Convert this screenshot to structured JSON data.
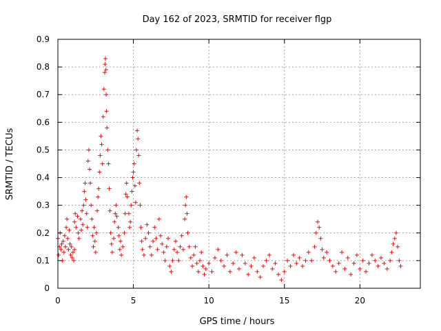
{
  "chart_data": {
    "type": "scatter",
    "title": "Day 162 of 2023, SRMTID for receiver flgp",
    "xlabel": "GPS time / hours",
    "ylabel": "SRMTID / TECUs",
    "xlim": [
      0,
      24
    ],
    "ylim": [
      0,
      0.9
    ],
    "grid": true,
    "marker": "+",
    "series_color": "#ff0000",
    "x_ticks": [
      {
        "value": 0,
        "label": "0"
      },
      {
        "value": 5,
        "label": "5"
      },
      {
        "value": 10,
        "label": "10"
      },
      {
        "value": 15,
        "label": "15"
      },
      {
        "value": 20,
        "label": "20"
      }
    ],
    "y_ticks": [
      {
        "value": 0,
        "label": "0"
      },
      {
        "value": 0.1,
        "label": "0.1"
      },
      {
        "value": 0.2,
        "label": "0.2"
      },
      {
        "value": 0.3,
        "label": "0.3"
      },
      {
        "value": 0.4,
        "label": "0.4"
      },
      {
        "value": 0.5,
        "label": "0.5"
      },
      {
        "value": 0.6,
        "label": "0.6"
      },
      {
        "value": 0.7,
        "label": "0.7"
      },
      {
        "value": 0.8,
        "label": "0.8"
      },
      {
        "value": 0.9,
        "label": "0.9"
      }
    ],
    "series": [
      {
        "name": "SRMTID",
        "points": [
          [
            0.0,
            0.18
          ],
          [
            0.05,
            0.12
          ],
          [
            0.1,
            0.15
          ],
          [
            0.15,
            0.2
          ],
          [
            0.2,
            0.14
          ],
          [
            0.25,
            0.16
          ],
          [
            0.3,
            0.1
          ],
          [
            0.35,
            0.17
          ],
          [
            0.4,
            0.13
          ],
          [
            0.45,
            0.19
          ],
          [
            0.5,
            0.15
          ],
          [
            0.55,
            0.22
          ],
          [
            0.6,
            0.25
          ],
          [
            0.65,
            0.18
          ],
          [
            0.7,
            0.14
          ],
          [
            0.75,
            0.21
          ],
          [
            0.8,
            0.16
          ],
          [
            0.85,
            0.12
          ],
          [
            0.9,
            0.15
          ],
          [
            0.95,
            0.11
          ],
          [
            1.0,
            0.13
          ],
          [
            1.05,
            0.1
          ],
          [
            1.1,
            0.14
          ],
          [
            1.1,
            0.24
          ],
          [
            1.15,
            0.27
          ],
          [
            1.2,
            0.22
          ],
          [
            1.3,
            0.26
          ],
          [
            1.35,
            0.2
          ],
          [
            1.4,
            0.18
          ],
          [
            1.5,
            0.25
          ],
          [
            1.55,
            0.21
          ],
          [
            1.6,
            0.28
          ],
          [
            1.65,
            0.23
          ],
          [
            1.7,
            0.3
          ],
          [
            1.75,
            0.35
          ],
          [
            1.8,
            0.38
          ],
          [
            1.85,
            0.32
          ],
          [
            1.9,
            0.27
          ],
          [
            1.95,
            0.22
          ],
          [
            2.0,
            0.46
          ],
          [
            2.05,
            0.5
          ],
          [
            2.1,
            0.43
          ],
          [
            2.15,
            0.38
          ],
          [
            2.2,
            0.3
          ],
          [
            2.25,
            0.25
          ],
          [
            2.3,
            0.19
          ],
          [
            2.35,
            0.15
          ],
          [
            2.4,
            0.22
          ],
          [
            2.45,
            0.17
          ],
          [
            2.5,
            0.13
          ],
          [
            2.55,
            0.2
          ],
          [
            2.6,
            0.28
          ],
          [
            2.65,
            0.33
          ],
          [
            2.7,
            0.36
          ],
          [
            2.75,
            0.42
          ],
          [
            2.8,
            0.48
          ],
          [
            2.85,
            0.55
          ],
          [
            2.9,
            0.52
          ],
          [
            2.95,
            0.45
          ],
          [
            3.0,
            0.62
          ],
          [
            3.05,
            0.72
          ],
          [
            3.1,
            0.78
          ],
          [
            3.12,
            0.81
          ],
          [
            3.15,
            0.83
          ],
          [
            3.18,
            0.79
          ],
          [
            3.2,
            0.7
          ],
          [
            3.22,
            0.64
          ],
          [
            3.25,
            0.58
          ],
          [
            3.3,
            0.5
          ],
          [
            3.35,
            0.45
          ],
          [
            3.4,
            0.36
          ],
          [
            3.45,
            0.28
          ],
          [
            3.5,
            0.2
          ],
          [
            3.55,
            0.16
          ],
          [
            3.6,
            0.13
          ],
          [
            3.7,
            0.18
          ],
          [
            3.75,
            0.24
          ],
          [
            3.8,
            0.27
          ],
          [
            3.85,
            0.3
          ],
          [
            3.9,
            0.26
          ],
          [
            4.0,
            0.22
          ],
          [
            4.05,
            0.19
          ],
          [
            4.1,
            0.14
          ],
          [
            4.15,
            0.17
          ],
          [
            4.2,
            0.12
          ],
          [
            4.3,
            0.15
          ],
          [
            4.4,
            0.2
          ],
          [
            4.45,
            0.27
          ],
          [
            4.5,
            0.34
          ],
          [
            4.55,
            0.38
          ],
          [
            4.6,
            0.33
          ],
          [
            4.7,
            0.27
          ],
          [
            4.75,
            0.22
          ],
          [
            4.8,
            0.24
          ],
          [
            4.85,
            0.3
          ],
          [
            4.9,
            0.35
          ],
          [
            4.95,
            0.4
          ],
          [
            5.0,
            0.42
          ],
          [
            5.05,
            0.45
          ],
          [
            5.1,
            0.37
          ],
          [
            5.15,
            0.31
          ],
          [
            5.2,
            0.5
          ],
          [
            5.25,
            0.57
          ],
          [
            5.3,
            0.54
          ],
          [
            5.35,
            0.48
          ],
          [
            5.4,
            0.38
          ],
          [
            5.45,
            0.3
          ],
          [
            5.5,
            0.22
          ],
          [
            5.55,
            0.17
          ],
          [
            5.6,
            0.14
          ],
          [
            5.7,
            0.12
          ],
          [
            5.8,
            0.18
          ],
          [
            5.9,
            0.23
          ],
          [
            6.0,
            0.2
          ],
          [
            6.1,
            0.15
          ],
          [
            6.2,
            0.12
          ],
          [
            6.3,
            0.17
          ],
          [
            6.4,
            0.22
          ],
          [
            6.5,
            0.18
          ],
          [
            6.6,
            0.14
          ],
          [
            6.7,
            0.25
          ],
          [
            6.8,
            0.19
          ],
          [
            6.9,
            0.16
          ],
          [
            7.0,
            0.13
          ],
          [
            7.1,
            0.1
          ],
          [
            7.2,
            0.15
          ],
          [
            7.3,
            0.18
          ],
          [
            7.4,
            0.08
          ],
          [
            7.5,
            0.06
          ],
          [
            7.6,
            0.1
          ],
          [
            7.7,
            0.14
          ],
          [
            7.8,
            0.17
          ],
          [
            7.9,
            0.13
          ],
          [
            8.0,
            0.1
          ],
          [
            8.1,
            0.15
          ],
          [
            8.2,
            0.19
          ],
          [
            8.3,
            0.14
          ],
          [
            8.4,
            0.25
          ],
          [
            8.45,
            0.3
          ],
          [
            8.5,
            0.33
          ],
          [
            8.55,
            0.27
          ],
          [
            8.6,
            0.2
          ],
          [
            8.7,
            0.15
          ],
          [
            8.8,
            0.11
          ],
          [
            8.9,
            0.08
          ],
          [
            9.0,
            0.12
          ],
          [
            9.1,
            0.15
          ],
          [
            9.2,
            0.09
          ],
          [
            9.3,
            0.06
          ],
          [
            9.4,
            0.1
          ],
          [
            9.5,
            0.13
          ],
          [
            9.6,
            0.08
          ],
          [
            9.7,
            0.05
          ],
          [
            9.8,
            0.07
          ],
          [
            10.0,
            0.09
          ],
          [
            10.2,
            0.06
          ],
          [
            10.4,
            0.11
          ],
          [
            10.6,
            0.14
          ],
          [
            10.8,
            0.1
          ],
          [
            11.0,
            0.08
          ],
          [
            11.2,
            0.12
          ],
          [
            11.4,
            0.06
          ],
          [
            11.6,
            0.09
          ],
          [
            11.8,
            0.13
          ],
          [
            12.0,
            0.07
          ],
          [
            12.2,
            0.12
          ],
          [
            12.4,
            0.09
          ],
          [
            12.6,
            0.05
          ],
          [
            12.8,
            0.08
          ],
          [
            13.0,
            0.11
          ],
          [
            13.2,
            0.06
          ],
          [
            13.4,
            0.04
          ],
          [
            13.6,
            0.08
          ],
          [
            13.8,
            0.1
          ],
          [
            14.0,
            0.12
          ],
          [
            14.2,
            0.07
          ],
          [
            14.4,
            0.09
          ],
          [
            14.6,
            0.05
          ],
          [
            14.8,
            0.03
          ],
          [
            15.0,
            0.06
          ],
          [
            15.2,
            0.1
          ],
          [
            15.4,
            0.08
          ],
          [
            15.6,
            0.12
          ],
          [
            15.8,
            0.09
          ],
          [
            16.0,
            0.11
          ],
          [
            16.2,
            0.08
          ],
          [
            16.4,
            0.1
          ],
          [
            16.6,
            0.13
          ],
          [
            16.8,
            0.1
          ],
          [
            17.0,
            0.15
          ],
          [
            17.1,
            0.2
          ],
          [
            17.2,
            0.24
          ],
          [
            17.3,
            0.22
          ],
          [
            17.4,
            0.18
          ],
          [
            17.5,
            0.14
          ],
          [
            17.6,
            0.11
          ],
          [
            17.8,
            0.13
          ],
          [
            18.0,
            0.1
          ],
          [
            18.2,
            0.08
          ],
          [
            18.4,
            0.06
          ],
          [
            18.6,
            0.09
          ],
          [
            18.8,
            0.13
          ],
          [
            19.0,
            0.07
          ],
          [
            19.2,
            0.11
          ],
          [
            19.4,
            0.05
          ],
          [
            19.6,
            0.09
          ],
          [
            19.8,
            0.12
          ],
          [
            20.0,
            0.07
          ],
          [
            20.2,
            0.1
          ],
          [
            20.4,
            0.06
          ],
          [
            20.6,
            0.09
          ],
          [
            20.8,
            0.12
          ],
          [
            21.0,
            0.1
          ],
          [
            21.2,
            0.08
          ],
          [
            21.4,
            0.11
          ],
          [
            21.6,
            0.09
          ],
          [
            21.8,
            0.07
          ],
          [
            22.0,
            0.1
          ],
          [
            22.1,
            0.13
          ],
          [
            22.2,
            0.16
          ],
          [
            22.3,
            0.18
          ],
          [
            22.4,
            0.2
          ],
          [
            22.5,
            0.15
          ],
          [
            22.6,
            0.1
          ],
          [
            22.7,
            0.08
          ]
        ]
      }
    ]
  }
}
